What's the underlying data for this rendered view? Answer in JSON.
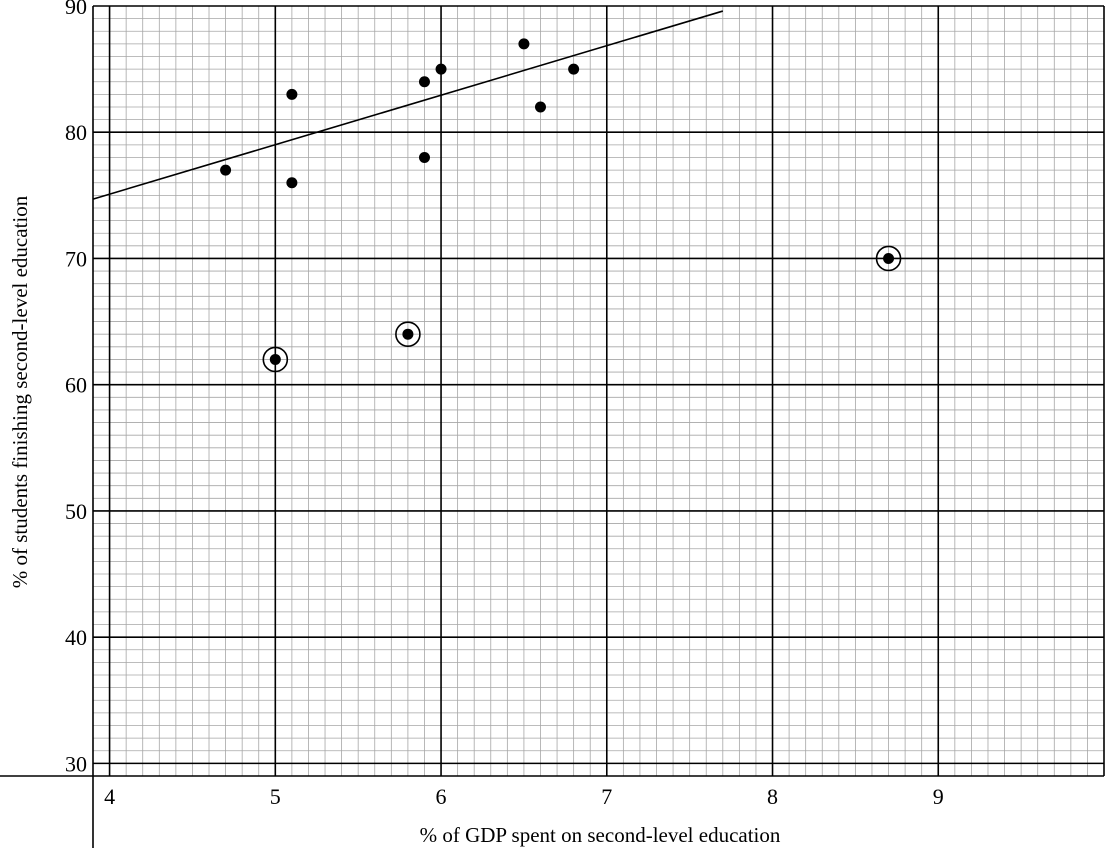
{
  "chart_data": {
    "type": "scatter",
    "xlabel": "% of GDP spent on second-level education",
    "ylabel": "% of students finishing second-level education",
    "xlim": [
      3.9,
      10.0
    ],
    "ylim": [
      29,
      90
    ],
    "x_ticks": [
      4,
      5,
      6,
      7,
      8,
      9
    ],
    "y_ticks": [
      30,
      40,
      50,
      60,
      70,
      80,
      90
    ],
    "grid": true,
    "minor_grid_step": {
      "x": 0.1,
      "y": 1
    },
    "points": [
      {
        "x": 4.7,
        "y": 77,
        "circled": false
      },
      {
        "x": 5.1,
        "y": 83,
        "circled": false
      },
      {
        "x": 5.1,
        "y": 76,
        "circled": false
      },
      {
        "x": 5.9,
        "y": 84,
        "circled": false
      },
      {
        "x": 6.0,
        "y": 85,
        "circled": false
      },
      {
        "x": 5.9,
        "y": 78,
        "circled": false
      },
      {
        "x": 6.5,
        "y": 87,
        "circled": false
      },
      {
        "x": 6.6,
        "y": 82,
        "circled": false
      },
      {
        "x": 6.8,
        "y": 85,
        "circled": false
      },
      {
        "x": 5.0,
        "y": 62,
        "circled": true
      },
      {
        "x": 5.8,
        "y": 64,
        "circled": true
      },
      {
        "x": 8.7,
        "y": 70,
        "circled": true
      }
    ],
    "trend_line": {
      "x": [
        3.9,
        7.7
      ],
      "y": [
        74.7,
        89.6
      ]
    }
  }
}
